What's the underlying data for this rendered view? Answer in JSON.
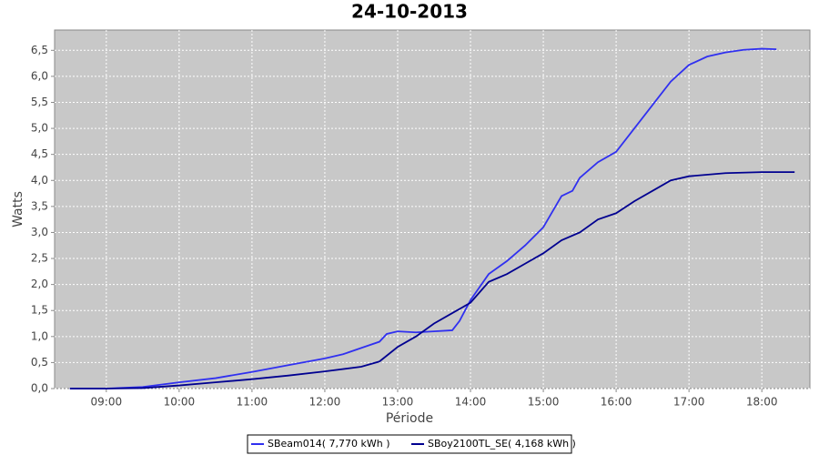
{
  "chart_data": {
    "type": "line",
    "title": "24-10-2013",
    "x_label": "Période",
    "y_label": "Watts",
    "xlim": [
      8.29,
      18.66
    ],
    "ylim": [
      0,
      6.89
    ],
    "xticks": [
      {
        "value": 9,
        "label": "09:00"
      },
      {
        "value": 10,
        "label": "10:00"
      },
      {
        "value": 11,
        "label": "11:00"
      },
      {
        "value": 12,
        "label": "12:00"
      },
      {
        "value": 13,
        "label": "13:00"
      },
      {
        "value": 14,
        "label": "14:00"
      },
      {
        "value": 15,
        "label": "15:00"
      },
      {
        "value": 16,
        "label": "16:00"
      },
      {
        "value": 17,
        "label": "17:00"
      },
      {
        "value": 18,
        "label": "18:00"
      }
    ],
    "yticks": [
      {
        "value": 0,
        "label": "0,0"
      },
      {
        "value": 0.5,
        "label": "0,5"
      },
      {
        "value": 1,
        "label": "1,0"
      },
      {
        "value": 1.5,
        "label": "1,5"
      },
      {
        "value": 2,
        "label": "2,0"
      },
      {
        "value": 2.5,
        "label": "2,5"
      },
      {
        "value": 3,
        "label": "3,0"
      },
      {
        "value": 3.5,
        "label": "3,5"
      },
      {
        "value": 4,
        "label": "4,0"
      },
      {
        "value": 4.5,
        "label": "4,5"
      },
      {
        "value": 5,
        "label": "5,0"
      },
      {
        "value": 5.5,
        "label": "5,5"
      },
      {
        "value": 6,
        "label": "6,0"
      },
      {
        "value": 6.5,
        "label": "6,5"
      }
    ],
    "grid": true,
    "series": [
      {
        "name": "SBeam014( 7,770 kWh )",
        "color": "#3030f0",
        "x": [
          8.5,
          9,
          9.5,
          10,
          10.5,
          11,
          11.5,
          12,
          12.25,
          12.5,
          12.75,
          12.85,
          13,
          13.25,
          13.5,
          13.75,
          13.85,
          14,
          14.25,
          14.5,
          14.75,
          15,
          15.25,
          15.4,
          15.5,
          15.75,
          16,
          16.25,
          16.5,
          16.75,
          17,
          17.25,
          17.5,
          17.75,
          18,
          18.2
        ],
        "values": [
          0,
          0,
          0.03,
          0.12,
          0.2,
          0.32,
          0.45,
          0.58,
          0.66,
          0.78,
          0.9,
          1.05,
          1.1,
          1.08,
          1.1,
          1.12,
          1.3,
          1.7,
          2.2,
          2.45,
          2.75,
          3.1,
          3.7,
          3.8,
          4.05,
          4.35,
          4.55,
          5.0,
          5.45,
          5.9,
          6.22,
          6.38,
          6.46,
          6.51,
          6.53,
          6.52
        ]
      },
      {
        "name": "SBoy2100TL_SE( 4,168 kWh )",
        "color": "#000090",
        "x": [
          8.5,
          9,
          9.5,
          10,
          10.5,
          11,
          11.5,
          12,
          12.5,
          12.75,
          13,
          13.25,
          13.5,
          13.75,
          14,
          14.25,
          14.5,
          14.75,
          15,
          15.25,
          15.5,
          15.75,
          16,
          16.25,
          16.5,
          16.75,
          17,
          17.5,
          18,
          18.45
        ],
        "values": [
          0,
          0,
          0.01,
          0.06,
          0.12,
          0.18,
          0.25,
          0.33,
          0.42,
          0.52,
          0.8,
          1.0,
          1.25,
          1.45,
          1.65,
          2.05,
          2.2,
          2.4,
          2.6,
          2.85,
          3.0,
          3.25,
          3.37,
          3.6,
          3.8,
          4.0,
          4.08,
          4.14,
          4.16,
          4.16
        ]
      }
    ]
  }
}
